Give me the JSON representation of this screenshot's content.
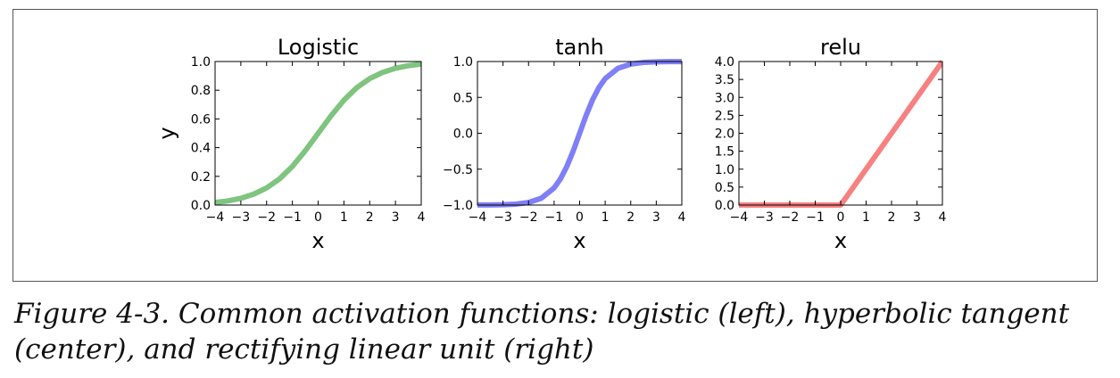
{
  "figure": {
    "caption_line1": "Figure 4-3. Common activation functions: logistic (left), hyperbolic tangent",
    "caption_line2": "(center), and rectifying linear unit (right)"
  },
  "chart_data": [
    {
      "type": "line",
      "title": "Logistic",
      "xlabel": "x",
      "ylabel": "y",
      "xlim": [
        -4,
        4
      ],
      "ylim": [
        0.0,
        1.0
      ],
      "xticks": [
        -4,
        -3,
        -2,
        -1,
        0,
        1,
        2,
        3,
        4
      ],
      "xtick_labels": [
        "−4",
        "−3",
        "−2",
        "−1",
        "0",
        "1",
        "2",
        "3",
        "4"
      ],
      "yticks": [
        0.0,
        0.2,
        0.4,
        0.6,
        0.8,
        1.0
      ],
      "ytick_labels": [
        "0.0",
        "0.2",
        "0.4",
        "0.6",
        "0.8",
        "1.0"
      ],
      "grid": false,
      "series": [
        {
          "color": "#7fc47f",
          "x": [
            -4,
            -3.5,
            -3,
            -2.5,
            -2,
            -1.5,
            -1,
            -0.5,
            0,
            0.5,
            1,
            1.5,
            2,
            2.5,
            3,
            3.5,
            4
          ],
          "y": [
            0.018,
            0.029,
            0.047,
            0.076,
            0.119,
            0.182,
            0.269,
            0.378,
            0.5,
            0.622,
            0.731,
            0.818,
            0.881,
            0.924,
            0.953,
            0.971,
            0.982
          ]
        }
      ]
    },
    {
      "type": "line",
      "title": "tanh",
      "xlabel": "x",
      "ylabel": "",
      "xlim": [
        -4,
        4
      ],
      "ylim": [
        -1.0,
        1.0
      ],
      "xticks": [
        -4,
        -3,
        -2,
        -1,
        0,
        1,
        2,
        3,
        4
      ],
      "xtick_labels": [
        "−4",
        "−3",
        "−2",
        "−1",
        "0",
        "1",
        "2",
        "3",
        "4"
      ],
      "yticks": [
        -1.0,
        -0.5,
        0.0,
        0.5,
        1.0
      ],
      "ytick_labels": [
        "−1.0",
        "−0.5",
        "0.0",
        "0.5",
        "1.0"
      ],
      "grid": false,
      "series": [
        {
          "color": "#7f7ff7",
          "x": [
            -4,
            -3.5,
            -3,
            -2.5,
            -2,
            -1.5,
            -1,
            -0.75,
            -0.5,
            -0.25,
            0,
            0.25,
            0.5,
            0.75,
            1,
            1.5,
            2,
            2.5,
            3,
            3.5,
            4
          ],
          "y": [
            -0.999,
            -0.998,
            -0.995,
            -0.987,
            -0.964,
            -0.905,
            -0.762,
            -0.635,
            -0.462,
            -0.245,
            0.0,
            0.245,
            0.462,
            0.635,
            0.762,
            0.905,
            0.964,
            0.987,
            0.995,
            0.998,
            0.999
          ]
        }
      ]
    },
    {
      "type": "line",
      "title": "relu",
      "xlabel": "x",
      "ylabel": "",
      "xlim": [
        -4,
        4
      ],
      "ylim": [
        0.0,
        4.0
      ],
      "xticks": [
        -4,
        -3,
        -2,
        -1,
        0,
        1,
        2,
        3,
        4
      ],
      "xtick_labels": [
        "−4",
        "−3",
        "−2",
        "−1",
        "0",
        "1",
        "2",
        "3",
        "4"
      ],
      "yticks": [
        0.0,
        0.5,
        1.0,
        1.5,
        2.0,
        2.5,
        3.0,
        3.5,
        4.0
      ],
      "ytick_labels": [
        "0.0",
        "0.5",
        "1.0",
        "1.5",
        "2.0",
        "2.5",
        "3.0",
        "3.5",
        "4.0"
      ],
      "grid": false,
      "series": [
        {
          "color": "#f78080",
          "x": [
            -4,
            0,
            4
          ],
          "y": [
            0.0,
            0.0,
            4.0
          ]
        }
      ]
    }
  ]
}
